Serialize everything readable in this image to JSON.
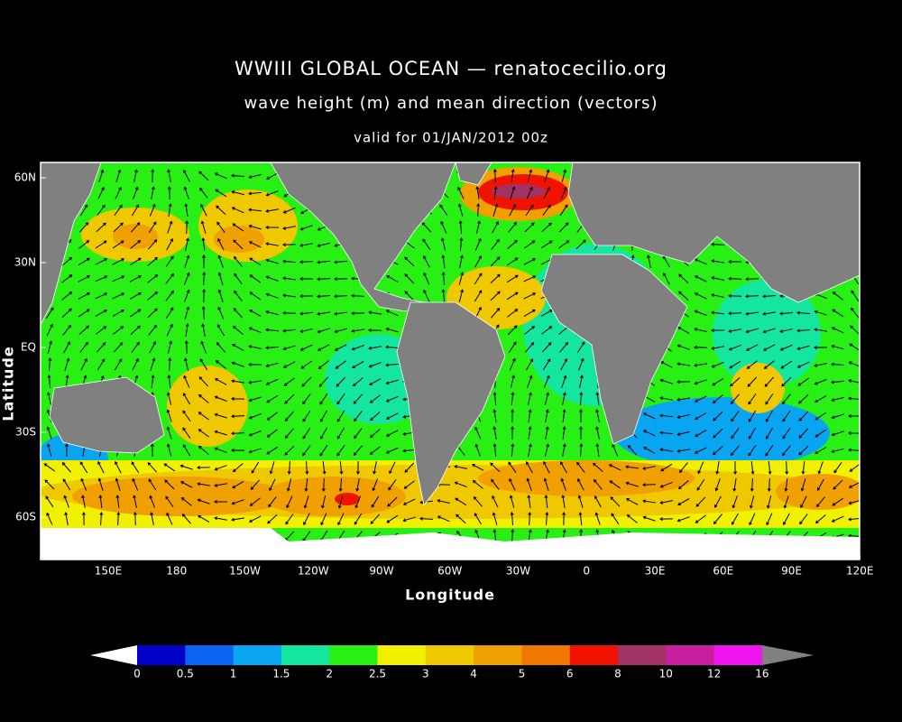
{
  "header": {
    "title": "WWIII GLOBAL OCEAN — renatocecilio.org",
    "subtitle": "wave height (m) and mean direction (vectors)",
    "valid": "valid for 01/JAN/2012 00z"
  },
  "map": {
    "x_axis_label": "Longitude",
    "y_axis_label": "Latitude",
    "x_ticks": [
      "150E",
      "180",
      "150W",
      "120W",
      "90W",
      "60W",
      "30W",
      "0",
      "30E",
      "60E",
      "90E",
      "120E"
    ],
    "y_ticks": [
      "60N",
      "30N",
      "EQ",
      "30S",
      "60S"
    ]
  },
  "colorbar": {
    "labels": [
      "0",
      "0.5",
      "1",
      "1.5",
      "2",
      "2.5",
      "3",
      "4",
      "5",
      "6",
      "8",
      "10",
      "12",
      "16"
    ],
    "colors": [
      "#0000c8",
      "#0a64f0",
      "#0aa5f0",
      "#14e6a0",
      "#28f014",
      "#f0f000",
      "#f0c800",
      "#f0a000",
      "#f07800",
      "#f01400",
      "#a03264",
      "#c81ea0",
      "#f014f0"
    ],
    "under_color": "#ffffff",
    "over_color": "#808080"
  }
}
